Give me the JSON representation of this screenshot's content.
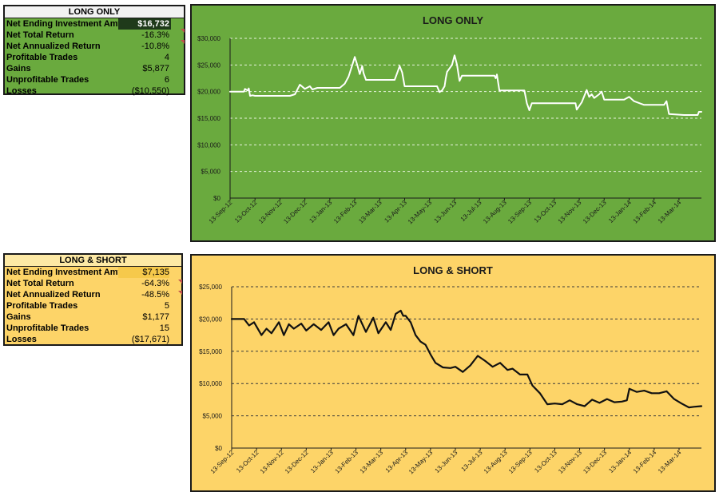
{
  "long_only_stats": {
    "title": "LONG ONLY",
    "rows": [
      {
        "label": "Net Ending Investment Amt",
        "value": "$16,732"
      },
      {
        "label": "Net Total Return",
        "value": "-16.3%"
      },
      {
        "label": "Net Annualized Return",
        "value": "-10.8%"
      },
      {
        "label": "Profitable Trades",
        "value": "4"
      },
      {
        "label": "Gains",
        "value": "$5,877"
      },
      {
        "label": "Unprofitable Trades",
        "value": "6"
      },
      {
        "label": "Losses",
        "value": "($10,550)"
      }
    ]
  },
  "long_short_stats": {
    "title": "LONG & SHORT",
    "rows": [
      {
        "label": "Net Ending Investment Amt",
        "value": "$7,135"
      },
      {
        "label": "Net Total Return",
        "value": "-64.3%"
      },
      {
        "label": "Net Annualized Return",
        "value": "-48.5%"
      },
      {
        "label": "Profitable Trades",
        "value": "5"
      },
      {
        "label": "Gains",
        "value": "$1,177"
      },
      {
        "label": "Unprofitable Trades",
        "value": "15"
      },
      {
        "label": "Losses",
        "value": "($17,671)"
      }
    ]
  },
  "colors": {
    "green_bg": "#6aaa3e",
    "yellow_bg": "#fdd468",
    "white_line": "#ffffff",
    "black_line": "#111111"
  },
  "chart_data": [
    {
      "type": "line",
      "title": "LONG ONLY",
      "xlabel": "",
      "ylabel": "",
      "ylim": [
        0,
        30000
      ],
      "yticks": [
        0,
        5000,
        10000,
        15000,
        20000,
        25000,
        30000
      ],
      "ytick_labels": [
        "$0",
        "$5,000",
        "$10,000",
        "$15,000",
        "$20,000",
        "$25,000",
        "$30,000"
      ],
      "grid": true,
      "categories": [
        "13-Sep-12",
        "13-Oct-12",
        "13-Nov-12",
        "13-Dec-12",
        "13-Jan-13",
        "13-Feb-13",
        "13-Mar-13",
        "13-Apr-13",
        "13-May-13",
        "13-Jun-13",
        "13-Jul-13",
        "13-Aug-13",
        "13-Sep-13",
        "13-Oct-13",
        "13-Nov-13",
        "13-Dec-13",
        "13-Jan-14",
        "13-Feb-14",
        "13-Mar-14"
      ],
      "x_end": 18.9,
      "series": [
        {
          "name": "Long Only",
          "x": [
            0,
            0.55,
            0.6,
            0.7,
            0.75,
            0.8,
            0.9,
            1.0,
            2.4,
            2.6,
            2.8,
            3.0,
            3.2,
            3.3,
            3.5,
            4.4,
            4.6,
            4.75,
            4.9,
            5.0,
            5.1,
            5.2,
            5.3,
            5.35,
            5.45,
            6.6,
            6.7,
            6.8,
            6.9,
            7.0,
            7.1,
            7.2,
            7.4,
            8.3,
            8.4,
            8.5,
            8.6,
            8.65,
            8.7,
            8.9,
            9.0,
            9.1,
            9.2,
            9.3,
            9.4,
            9.5,
            9.6,
            10.6,
            10.65,
            10.7,
            10.8,
            11.0,
            11.1,
            11.8,
            11.9,
            12.0,
            12.1,
            12.2,
            13.0,
            13.85,
            13.9,
            14.1,
            14.3,
            14.4,
            14.5,
            14.6,
            14.8,
            14.9,
            15.0,
            15.6,
            15.8,
            16.0,
            16.2,
            16.6,
            17.1,
            17.4,
            17.5,
            17.6,
            18.2,
            18.75,
            18.8,
            18.9
          ],
          "values": [
            20000,
            20000,
            20500,
            20200,
            20600,
            19200,
            19300,
            19200,
            19200,
            19500,
            21300,
            20500,
            21000,
            20400,
            20700,
            20700,
            21500,
            22800,
            25000,
            26500,
            25000,
            23300,
            24800,
            23500,
            22200,
            22200,
            23500,
            24800,
            23600,
            21000,
            21000,
            21000,
            21000,
            21000,
            19900,
            20200,
            21000,
            22500,
            23700,
            25000,
            26800,
            25000,
            22000,
            23000,
            23000,
            23000,
            23000,
            23000,
            22500,
            23200,
            20200,
            20200,
            20200,
            20200,
            17800,
            16500,
            17800,
            17800,
            17800,
            17800,
            16600,
            18000,
            20300,
            19000,
            19500,
            18800,
            19500,
            20000,
            18500,
            18500,
            18500,
            19000,
            18200,
            17500,
            17500,
            17500,
            18200,
            15800,
            15600,
            15600,
            16200,
            16200
          ]
        }
      ]
    },
    {
      "type": "line",
      "title": "LONG & SHORT",
      "xlabel": "",
      "ylabel": "",
      "ylim": [
        0,
        25000
      ],
      "yticks": [
        0,
        5000,
        10000,
        15000,
        20000,
        25000
      ],
      "ytick_labels": [
        "$0",
        "$5,000",
        "$10,000",
        "$15,000",
        "$20,000",
        "$25,000"
      ],
      "grid": true,
      "categories": [
        "13-Sep-12",
        "13-Oct-12",
        "13-Nov-12",
        "13-Dec-12",
        "13-Jan-13",
        "13-Feb-13",
        "13-Mar-13",
        "13-Apr-13",
        "13-May-13",
        "13-Jun-13",
        "13-Jul-13",
        "13-Aug-13",
        "13-Sep-13",
        "13-Oct-13",
        "13-Nov-13",
        "13-Dec-13",
        "13-Jan-14",
        "13-Feb-14",
        "13-Mar-14"
      ],
      "x_end": 18.9,
      "series": [
        {
          "name": "Long & Short",
          "x": [
            0,
            0.5,
            0.7,
            0.9,
            1.2,
            1.4,
            1.6,
            1.9,
            2.1,
            2.3,
            2.5,
            2.8,
            3.0,
            3.3,
            3.6,
            3.9,
            4.1,
            4.3,
            4.6,
            4.9,
            5.1,
            5.4,
            5.7,
            5.9,
            6.2,
            6.4,
            6.6,
            6.8,
            6.9,
            7.0,
            7.2,
            7.4,
            7.6,
            7.8,
            8.0,
            8.2,
            8.5,
            8.8,
            9.0,
            9.3,
            9.6,
            9.9,
            10.2,
            10.5,
            10.8,
            11.1,
            11.3,
            11.6,
            11.9,
            12.1,
            12.4,
            12.7,
            13.0,
            13.3,
            13.6,
            13.9,
            14.2,
            14.5,
            14.8,
            15.1,
            15.4,
            15.7,
            15.9,
            16.0,
            16.3,
            16.6,
            16.9,
            17.2,
            17.5,
            17.8,
            18.1,
            18.4,
            18.6,
            18.9
          ],
          "values": [
            20000,
            20000,
            19000,
            19500,
            17500,
            18500,
            17800,
            19500,
            17500,
            19200,
            18500,
            19300,
            18200,
            19200,
            18300,
            19500,
            17500,
            18500,
            19200,
            17500,
            20500,
            18000,
            20200,
            17800,
            19500,
            18300,
            20800,
            21300,
            20500,
            20500,
            19500,
            17500,
            16500,
            16000,
            14500,
            13200,
            12500,
            12400,
            12600,
            11800,
            12800,
            14300,
            13500,
            12600,
            13200,
            12100,
            12300,
            11400,
            11400,
            9700,
            8500,
            6800,
            6900,
            6800,
            7400,
            6800,
            6500,
            7500,
            7000,
            7600,
            7100,
            7200,
            7400,
            9200,
            8700,
            8900,
            8500,
            8500,
            8800,
            7600,
            6900,
            6300,
            6400,
            6500
          ]
        }
      ]
    }
  ]
}
